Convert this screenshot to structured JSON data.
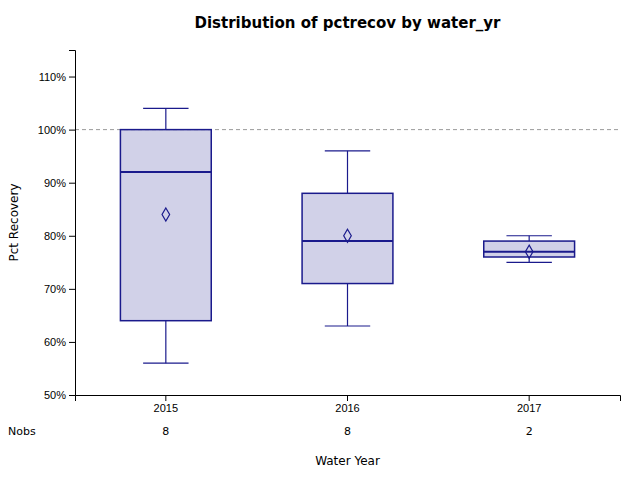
{
  "chart_data": {
    "type": "box",
    "title": "Distribution of pctrecov by water_yr",
    "xlabel": "Water Year",
    "ylabel": "Pct Recovery",
    "categories": [
      "2015",
      "2016",
      "2017"
    ],
    "boxes": [
      {
        "q1": 64,
        "median": 92,
        "q3": 100,
        "whislo": 56,
        "whishi": 104,
        "mean": 84
      },
      {
        "q1": 71,
        "median": 79,
        "q3": 88,
        "whislo": 63,
        "whishi": 96,
        "mean": 80
      },
      {
        "q1": 76,
        "median": 77,
        "q3": 79,
        "whislo": 75,
        "whishi": 80,
        "mean": 77
      }
    ],
    "nobs_label": "Nobs",
    "nobs": [
      8,
      8,
      2
    ],
    "reference_line": 100,
    "ylim": [
      50,
      115
    ],
    "yticks": [
      {
        "value": 50,
        "label": "50%"
      },
      {
        "value": 60,
        "label": "60%"
      },
      {
        "value": 70,
        "label": "70%"
      },
      {
        "value": 80,
        "label": "80%"
      },
      {
        "value": 90,
        "label": "90%"
      },
      {
        "value": 100,
        "label": "100%"
      },
      {
        "value": 110,
        "label": "110%"
      }
    ],
    "color": "#1a1a8c",
    "grid": false
  }
}
